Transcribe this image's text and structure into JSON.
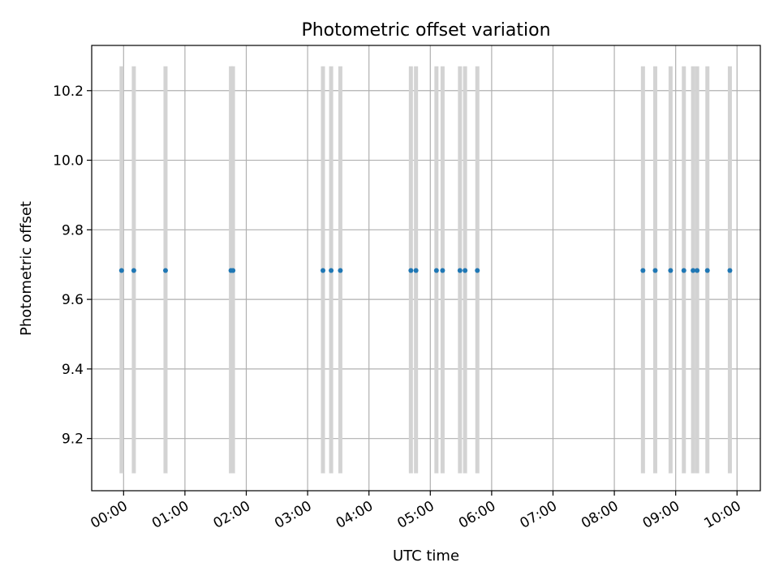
{
  "chart_data": {
    "type": "scatter",
    "title": "Photometric offset variation",
    "xlabel": "UTC time",
    "ylabel": "Photometric offset",
    "xlim_hours": [
      -0.52,
      10.38
    ],
    "ylim": [
      9.05,
      10.33
    ],
    "grid": true,
    "x_ticks": [
      "00:00",
      "01:00",
      "02:00",
      "03:00",
      "04:00",
      "05:00",
      "06:00",
      "07:00",
      "08:00",
      "09:00",
      "10:00"
    ],
    "y_ticks": [
      9.2,
      9.4,
      9.6,
      9.8,
      10.0,
      10.2
    ],
    "y_tick_labels": [
      "9.2",
      "9.4",
      "9.6",
      "9.8",
      "10.0",
      "10.2"
    ],
    "errorbar_range": [
      9.1,
      10.27
    ],
    "points": [
      {
        "x": "23:58",
        "y": 9.683
      },
      {
        "x": "00:10",
        "y": 9.683
      },
      {
        "x": "00:41",
        "y": 9.683
      },
      {
        "x": "01:45",
        "y": 9.683
      },
      {
        "x": "01:47",
        "y": 9.683
      },
      {
        "x": "03:15",
        "y": 9.683
      },
      {
        "x": "03:23",
        "y": 9.683
      },
      {
        "x": "03:32",
        "y": 9.683
      },
      {
        "x": "04:41",
        "y": 9.683
      },
      {
        "x": "04:46",
        "y": 9.683
      },
      {
        "x": "05:06",
        "y": 9.683
      },
      {
        "x": "05:12",
        "y": 9.683
      },
      {
        "x": "05:29",
        "y": 9.683
      },
      {
        "x": "05:34",
        "y": 9.683
      },
      {
        "x": "05:46",
        "y": 9.683
      },
      {
        "x": "08:28",
        "y": 9.683
      },
      {
        "x": "08:40",
        "y": 9.683
      },
      {
        "x": "08:55",
        "y": 9.683
      },
      {
        "x": "09:08",
        "y": 9.683
      },
      {
        "x": "09:17",
        "y": 9.683
      },
      {
        "x": "09:21",
        "y": 9.683
      },
      {
        "x": "09:31",
        "y": 9.683
      },
      {
        "x": "09:53",
        "y": 9.683
      }
    ],
    "colors": {
      "point": "#1f77b4",
      "errorbar": "#d3d3d3",
      "grid": "#b0b0b0",
      "axes": "#000000"
    }
  }
}
